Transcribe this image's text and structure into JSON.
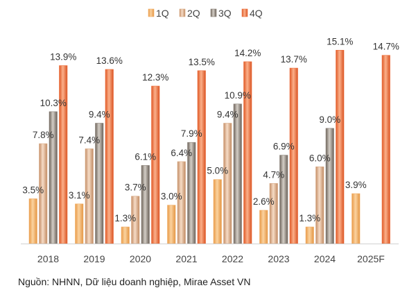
{
  "source_note": "Nguồn: NHNN, Dữ liệu doanh nghiệp, Mirae Asset VN",
  "chart_data": {
    "type": "bar",
    "title": "",
    "xlabel": "",
    "ylabel": "",
    "ylim": [
      0,
      16.2
    ],
    "grid": false,
    "legend_position": "top-center",
    "categories": [
      "2018",
      "2019",
      "2020",
      "2021",
      "2022",
      "2023",
      "2024",
      "2025F"
    ],
    "series": [
      {
        "name": "1Q",
        "color": "#f2b06a",
        "values": [
          3.5,
          3.1,
          1.3,
          3.0,
          5.0,
          2.6,
          1.3,
          3.9
        ]
      },
      {
        "name": "2Q",
        "color": "#d9ab86",
        "values": [
          7.8,
          7.4,
          3.7,
          6.4,
          9.4,
          4.7,
          6.0,
          null
        ]
      },
      {
        "name": "3Q",
        "color": "#8a8178",
        "values": [
          10.3,
          9.4,
          6.1,
          7.9,
          10.9,
          6.9,
          9.0,
          null
        ]
      },
      {
        "name": "4Q",
        "color": "#ee6e3b",
        "values": [
          13.9,
          13.6,
          12.3,
          13.5,
          14.2,
          13.7,
          15.1,
          14.7
        ]
      }
    ],
    "data_labels": [
      [
        "3.5%",
        "3.1%",
        "1.3%",
        "3.0%",
        "5.0%",
        "2.6%",
        "1.3%",
        "3.9%"
      ],
      [
        "7.8%",
        "7.4%",
        "3.7%",
        "6.4%",
        "9.4%",
        "4.7%",
        "6.0%",
        ""
      ],
      [
        "10.3%",
        "9.4%",
        "6.1%",
        "7.9%",
        "10.9%",
        "6.9%",
        "9.0%",
        ""
      ],
      [
        "13.9%",
        "13.6%",
        "12.3%",
        "13.5%",
        "14.2%",
        "13.7%",
        "15.1%",
        "14.7%"
      ]
    ]
  }
}
